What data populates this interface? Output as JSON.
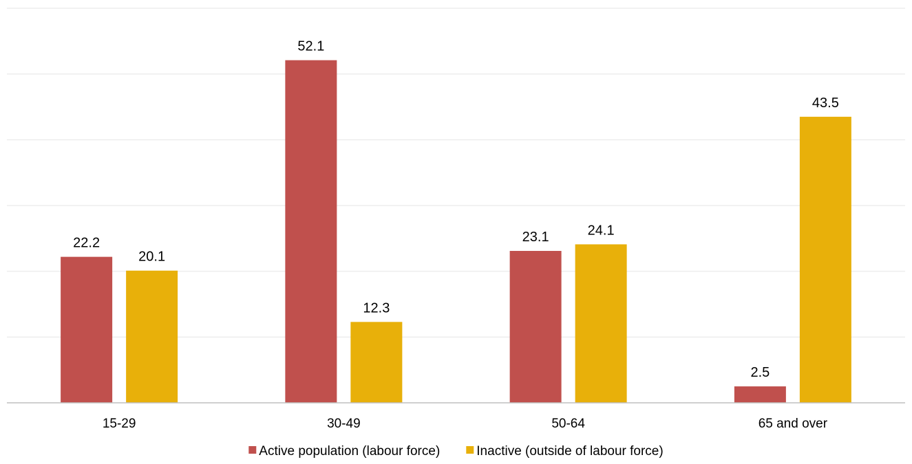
{
  "chart_data": {
    "type": "bar",
    "title": "",
    "xlabel": "",
    "ylabel": "",
    "categories": [
      "15-29",
      "30-49",
      "50-64",
      "65 and over"
    ],
    "series": [
      {
        "name": "Active population (labour force)",
        "color": "#C0504D",
        "values": [
          22.2,
          52.1,
          23.1,
          2.5
        ]
      },
      {
        "name": "Inactive (outside of labour force)",
        "color": "#E8B00A",
        "values": [
          20.1,
          12.3,
          24.1,
          43.5
        ]
      }
    ],
    "ylim": [
      0,
      60
    ],
    "grid_step": 10,
    "grid": true,
    "legend_position": "bottom",
    "data_labels": true,
    "y_axis_labels_visible": false
  }
}
